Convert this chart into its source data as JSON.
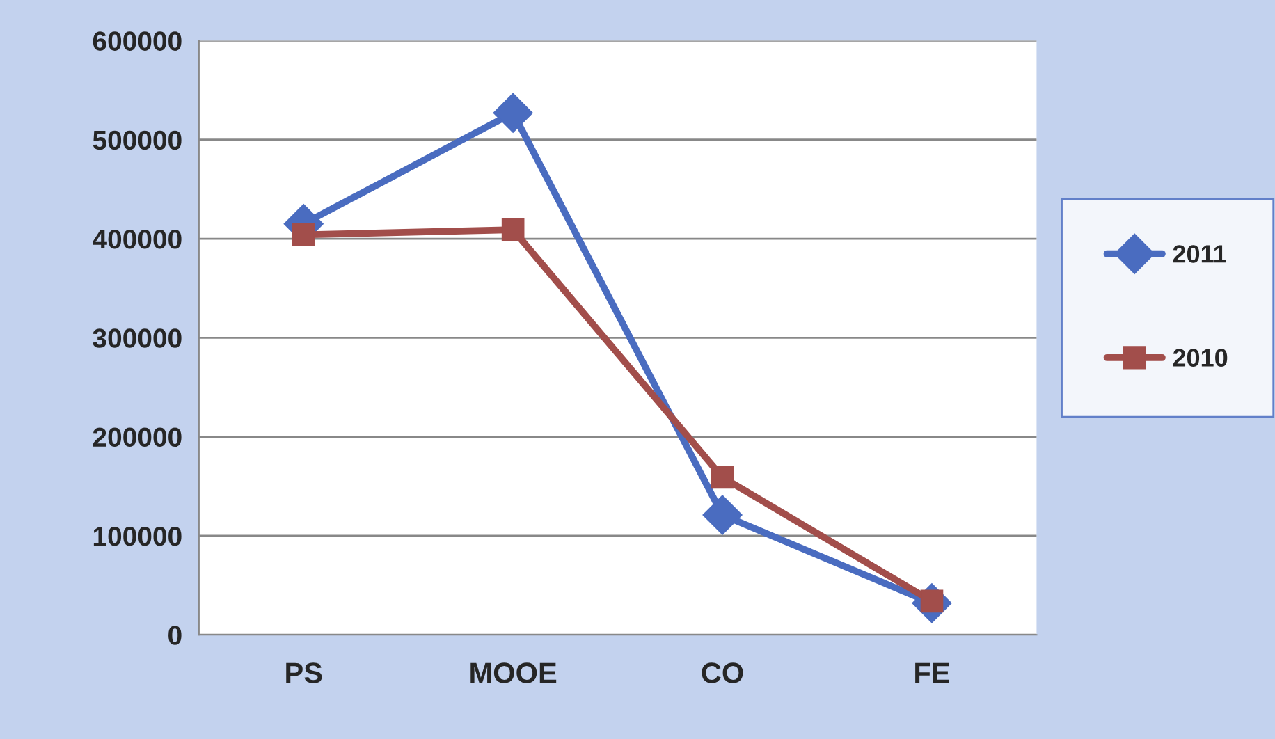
{
  "chart_data": {
    "type": "line",
    "categories": [
      "PS",
      "MOOE",
      "CO",
      "FE"
    ],
    "series": [
      {
        "name": "2011",
        "color": "#4a6cc0",
        "marker": "diamond",
        "values": [
          415000,
          527000,
          121000,
          32000
        ]
      },
      {
        "name": "2010",
        "color": "#a24e4b",
        "marker": "square",
        "values": [
          404000,
          409000,
          159000,
          34000
        ]
      }
    ],
    "ylim": [
      0,
      600000
    ],
    "yticks": [
      0,
      100000,
      200000,
      300000,
      400000,
      500000,
      600000
    ],
    "grid": "y",
    "legend": "right",
    "line_style": "solid"
  }
}
